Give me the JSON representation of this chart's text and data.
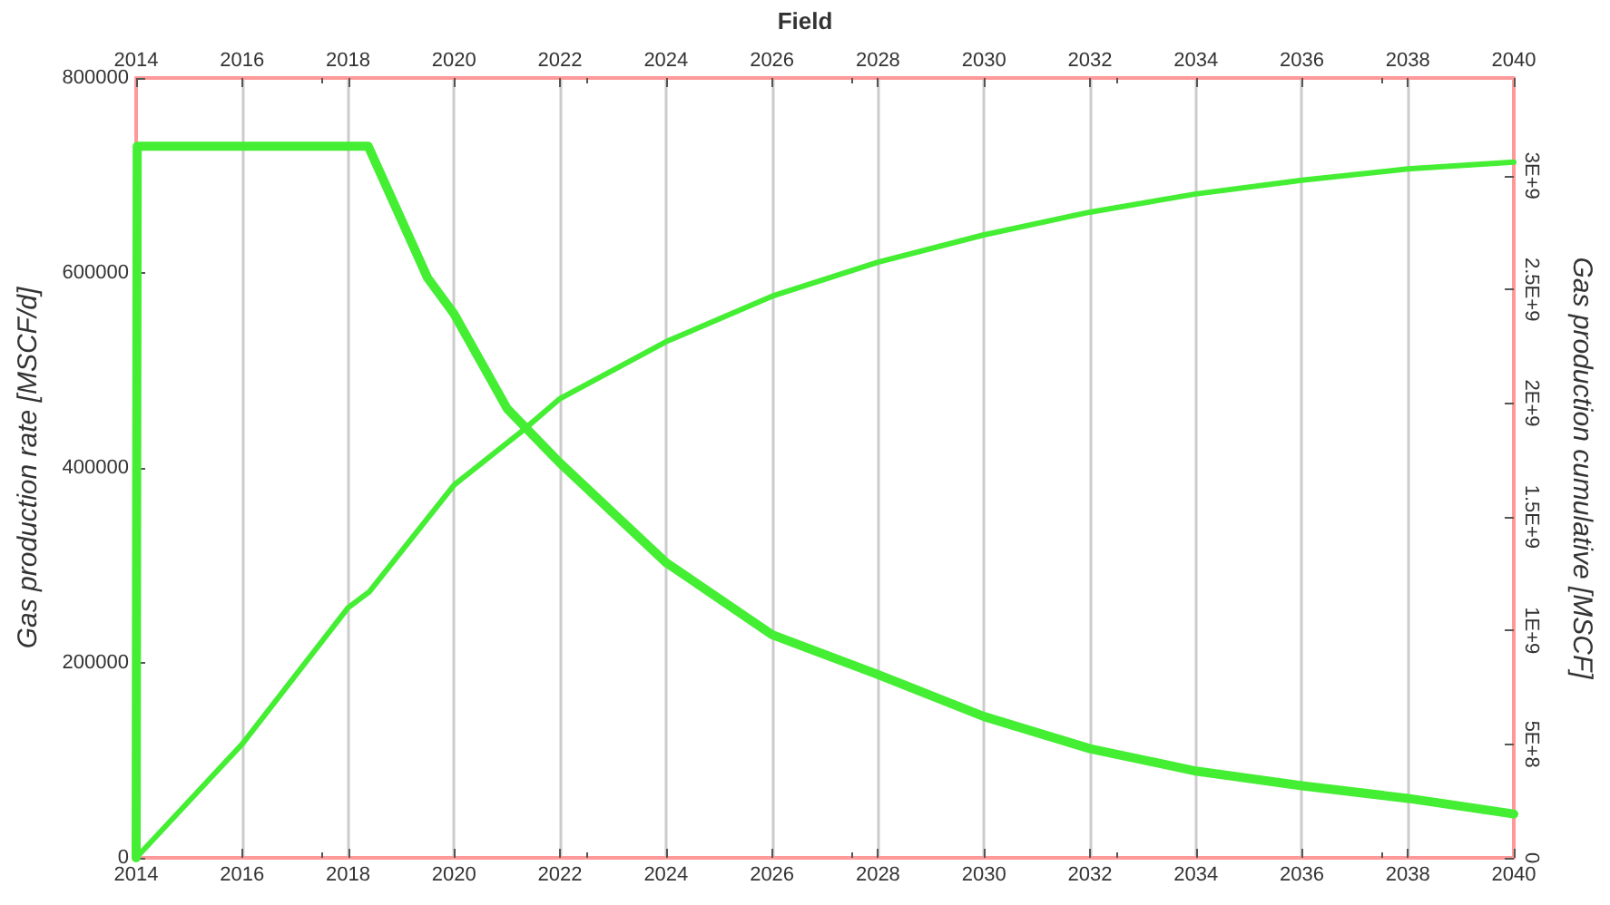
{
  "chart_data": {
    "type": "line",
    "title": "Field",
    "ylabel": "Gas production rate [MSCF/d]",
    "y2label": "Gas production cumulative [MSCF]",
    "xlim": [
      2014,
      2040
    ],
    "xticks": [
      2014,
      2016,
      2018,
      2020,
      2022,
      2024,
      2026,
      2028,
      2030,
      2032,
      2034,
      2036,
      2038,
      2040
    ],
    "x2lim": [
      2014,
      2040
    ],
    "x2ticks": [
      2014,
      2016,
      2018,
      2020,
      2022,
      2024,
      2026,
      2028,
      2030,
      2032,
      2034,
      2036,
      2038,
      2040
    ],
    "ylim": [
      0,
      800000
    ],
    "yticks": [
      0,
      200000,
      400000,
      600000,
      800000
    ],
    "y2lim": [
      0,
      3430000000
    ],
    "y2ticks": [
      {
        "value": 0,
        "label": "0"
      },
      {
        "value": 500000000,
        "label": "5E+8"
      },
      {
        "value": 1000000000,
        "label": "1E+9"
      },
      {
        "value": 1500000000,
        "label": "1.5E+9"
      },
      {
        "value": 2000000000,
        "label": "2E+9"
      },
      {
        "value": 2500000000,
        "label": "2.5E+9"
      },
      {
        "value": 3000000000,
        "label": "3E+9"
      }
    ],
    "grid": "x",
    "marker": "none",
    "line_style": "solid",
    "series": [
      {
        "color": "#44ee33",
        "axis": "y",
        "x": [
          2014,
          2014.02,
          2018.38,
          2019.5,
          2020,
          2021,
          2022,
          2024,
          2026,
          2028,
          2030,
          2032,
          2034,
          2036,
          2038,
          2040
        ],
        "values": [
          0,
          730000,
          730000,
          595000,
          558000,
          461000,
          405000,
          303000,
          229000,
          188000,
          145000,
          112000,
          89000,
          74000,
          61000,
          45000
        ]
      },
      {
        "color": "#44ee33",
        "axis": "y2",
        "x": [
          2014,
          2016,
          2018,
          2018.4,
          2020,
          2021.3,
          2022,
          2024,
          2026,
          2028,
          2030,
          2032,
          2034,
          2036,
          2038,
          2040
        ],
        "values": [
          0,
          500000000,
          1100000000,
          1170000000,
          1640000000,
          1880000000,
          2020000000,
          2270000000,
          2470000000,
          2620000000,
          2740000000,
          2840000000,
          2920000000,
          2980000000,
          3030000000,
          3060000000
        ]
      }
    ]
  }
}
